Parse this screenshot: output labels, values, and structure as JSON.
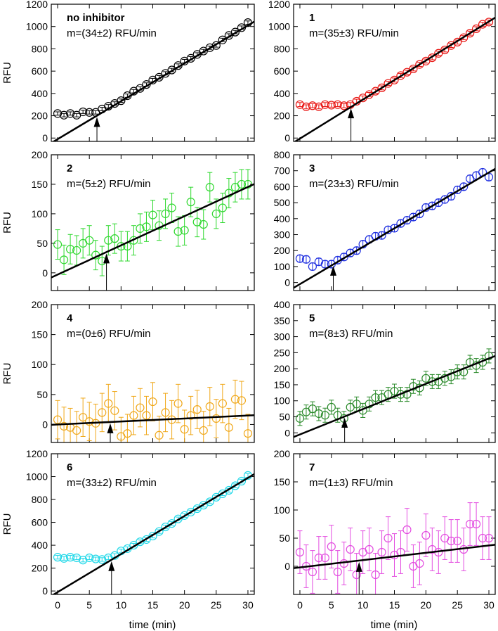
{
  "figure": {
    "xlabel": "time (min)",
    "ylabel": "RFU"
  },
  "chart_data": [
    {
      "type": "scatter",
      "label": "no inhibitor",
      "slope_text": "m=(34±2) RFU/min",
      "color": "#000000",
      "ylim": [
        -30,
        1200
      ],
      "yticks": [
        0,
        200,
        400,
        600,
        800,
        1000,
        1200
      ],
      "xlim": [
        -1,
        31
      ],
      "xticks": [
        0,
        5,
        10,
        15,
        20,
        25,
        30
      ],
      "arrow_x": 6.2,
      "fit": {
        "slope": 34,
        "intercept": -10
      },
      "x": [
        0,
        1,
        2,
        3,
        4,
        5,
        6,
        7,
        8,
        9,
        10,
        11,
        12,
        13,
        14,
        15,
        16,
        17,
        18,
        19,
        20,
        21,
        22,
        23,
        24,
        25,
        26,
        27,
        28,
        29,
        30
      ],
      "y": [
        220,
        205,
        220,
        205,
        235,
        230,
        230,
        260,
        285,
        310,
        335,
        380,
        420,
        445,
        480,
        520,
        545,
        580,
        610,
        650,
        690,
        715,
        750,
        780,
        810,
        830,
        880,
        920,
        950,
        990,
        1035
      ],
      "err": [
        15,
        15,
        15,
        15,
        15,
        15,
        15,
        15,
        15,
        15,
        15,
        15,
        15,
        15,
        15,
        15,
        15,
        15,
        15,
        15,
        15,
        15,
        15,
        15,
        15,
        15,
        15,
        15,
        15,
        15,
        15
      ]
    },
    {
      "type": "scatter",
      "label": "1",
      "slope_text": "m=(35±3) RFU/min",
      "color": "#e8120f",
      "ylim": [
        -30,
        1200
      ],
      "yticks": [
        0,
        200,
        400,
        600,
        800,
        1000,
        1200
      ],
      "xlim": [
        -1,
        31
      ],
      "xticks": [
        0,
        5,
        10,
        15,
        20,
        25,
        30
      ],
      "arrow_x": 8.1,
      "fit": {
        "slope": 35,
        "intercept": -5
      },
      "x": [
        0,
        1,
        2,
        3,
        4,
        5,
        6,
        7,
        8,
        9,
        10,
        11,
        12,
        13,
        14,
        15,
        16,
        17,
        18,
        19,
        20,
        21,
        22,
        23,
        24,
        25,
        26,
        27,
        28,
        29,
        30
      ],
      "y": [
        300,
        280,
        290,
        280,
        300,
        295,
        300,
        290,
        300,
        330,
        360,
        390,
        420,
        450,
        490,
        520,
        560,
        590,
        620,
        660,
        690,
        720,
        760,
        790,
        830,
        860,
        900,
        940,
        980,
        1020,
        1040
      ],
      "err": [
        18,
        18,
        18,
        18,
        18,
        18,
        18,
        18,
        18,
        18,
        18,
        18,
        18,
        18,
        18,
        18,
        18,
        18,
        18,
        18,
        18,
        18,
        18,
        18,
        18,
        18,
        18,
        18,
        18,
        18,
        18
      ]
    },
    {
      "type": "scatter",
      "label": "2",
      "slope_text": "m=(5±2) RFU/min",
      "color": "#2ed82e",
      "ylim": [
        -30,
        200
      ],
      "yticks": [
        0,
        50,
        100,
        150,
        200
      ],
      "xlim": [
        -1,
        31
      ],
      "xticks": [
        0,
        5,
        10,
        15,
        20,
        25,
        30
      ],
      "arrow_x": 7.7,
      "fit": {
        "slope": 4.95,
        "intercept": -3
      },
      "x": [
        0,
        1,
        2,
        3,
        4,
        5,
        6,
        7,
        8,
        9,
        10,
        11,
        12,
        13,
        14,
        15,
        16,
        17,
        18,
        19,
        20,
        21,
        22,
        23,
        24,
        25,
        26,
        27,
        28,
        29,
        30
      ],
      "y": [
        48,
        22,
        40,
        38,
        50,
        55,
        30,
        20,
        55,
        58,
        45,
        45,
        55,
        75,
        78,
        98,
        80,
        100,
        110,
        70,
        72,
        120,
        86,
        82,
        145,
        100,
        110,
        135,
        145,
        150,
        150
      ],
      "err": [
        25,
        25,
        25,
        25,
        25,
        25,
        25,
        25,
        25,
        25,
        25,
        25,
        25,
        25,
        25,
        25,
        25,
        25,
        25,
        25,
        25,
        25,
        25,
        25,
        25,
        25,
        25,
        25,
        25,
        25,
        25
      ]
    },
    {
      "type": "scatter",
      "label": "3",
      "slope_text": "m=(23±3) RFU/min",
      "color": "#1f2fe0",
      "ylim": [
        -50,
        800
      ],
      "yticks": [
        0,
        100,
        200,
        300,
        400,
        500,
        600,
        700,
        800
      ],
      "xlim": [
        -1,
        31
      ],
      "xticks": [
        0,
        5,
        10,
        15,
        20,
        25,
        30
      ],
      "arrow_x": 5.3,
      "fit": {
        "slope": 23.3,
        "intercept": -10
      },
      "x": [
        0,
        1,
        2,
        3,
        4,
        5,
        6,
        7,
        8,
        9,
        10,
        11,
        12,
        13,
        14,
        15,
        16,
        17,
        18,
        19,
        20,
        21,
        22,
        23,
        24,
        25,
        26,
        27,
        28,
        29,
        30
      ],
      "y": [
        150,
        145,
        100,
        130,
        115,
        115,
        140,
        160,
        185,
        200,
        240,
        270,
        290,
        295,
        330,
        340,
        370,
        390,
        410,
        430,
        470,
        480,
        500,
        520,
        540,
        580,
        600,
        650,
        670,
        690,
        660
      ],
      "err": [
        22,
        22,
        22,
        22,
        22,
        22,
        22,
        22,
        22,
        22,
        22,
        22,
        22,
        22,
        22,
        22,
        22,
        22,
        22,
        22,
        22,
        22,
        22,
        22,
        22,
        22,
        22,
        22,
        22,
        22,
        22
      ]
    },
    {
      "type": "scatter",
      "label": "4",
      "slope_text": "m=(0±6) RFU/min",
      "color": "#f0a81a",
      "ylim": [
        -30,
        200
      ],
      "yticks": [
        0,
        50,
        100,
        150,
        200
      ],
      "xlim": [
        -1,
        31
      ],
      "xticks": [
        0,
        5,
        10,
        15,
        20,
        25,
        30
      ],
      "arrow_x": 8.3,
      "fit": {
        "slope": 0.5,
        "intercept": 0
      },
      "x": [
        0,
        1,
        2,
        3,
        4,
        5,
        6,
        7,
        8,
        9,
        10,
        11,
        12,
        13,
        14,
        15,
        16,
        17,
        18,
        19,
        20,
        21,
        22,
        23,
        24,
        25,
        26,
        27,
        28,
        29,
        30
      ],
      "y": [
        8,
        -3,
        -5,
        -10,
        12,
        5,
        2,
        20,
        35,
        23,
        -20,
        -15,
        15,
        28,
        15,
        38,
        -18,
        20,
        8,
        35,
        -8,
        15,
        25,
        -10,
        30,
        10,
        35,
        -5,
        42,
        40,
        -15
      ],
      "err": [
        32,
        32,
        32,
        32,
        32,
        32,
        32,
        32,
        32,
        32,
        32,
        32,
        32,
        32,
        32,
        32,
        32,
        32,
        32,
        32,
        32,
        32,
        32,
        32,
        32,
        32,
        32,
        32,
        32,
        32,
        32
      ]
    },
    {
      "type": "scatter",
      "label": "5",
      "slope_text": "m=(8±3) RFU/min",
      "color": "#2a8a2a",
      "ylim": [
        -30,
        400
      ],
      "yticks": [
        0,
        50,
        100,
        150,
        200,
        250,
        300,
        350,
        400
      ],
      "xlim": [
        -1,
        31
      ],
      "xticks": [
        0,
        5,
        10,
        15,
        20,
        25,
        30
      ],
      "arrow_x": 7.1,
      "fit": {
        "slope": 7.9,
        "intercept": -5
      },
      "x": [
        0,
        1,
        2,
        3,
        4,
        5,
        6,
        7,
        8,
        9,
        10,
        11,
        12,
        13,
        14,
        15,
        16,
        17,
        18,
        19,
        20,
        21,
        22,
        23,
        24,
        25,
        26,
        27,
        28,
        29,
        30
      ],
      "y": [
        45,
        65,
        75,
        60,
        55,
        80,
        55,
        45,
        80,
        90,
        70,
        90,
        110,
        110,
        120,
        130,
        120,
        120,
        145,
        140,
        170,
        160,
        160,
        170,
        175,
        190,
        190,
        220,
        210,
        220,
        240
      ],
      "err": [
        22,
        22,
        22,
        22,
        22,
        22,
        22,
        22,
        22,
        22,
        22,
        22,
        22,
        22,
        22,
        22,
        22,
        22,
        22,
        22,
        22,
        22,
        22,
        22,
        22,
        22,
        22,
        22,
        22,
        22,
        22
      ]
    },
    {
      "type": "scatter",
      "label": "6",
      "slope_text": "m=(33±2) RFU/min",
      "color": "#1fd8e8",
      "ylim": [
        -30,
        1200
      ],
      "yticks": [
        0,
        200,
        400,
        600,
        800,
        1000,
        1200
      ],
      "xlim": [
        -1,
        31
      ],
      "xticks": [
        0,
        5,
        10,
        15,
        20,
        25,
        30
      ],
      "arrow_x": 8.5,
      "fit": {
        "slope": 33.3,
        "intercept": -10
      },
      "x": [
        0,
        1,
        2,
        3,
        4,
        5,
        6,
        7,
        8,
        9,
        10,
        11,
        12,
        13,
        14,
        15,
        16,
        17,
        18,
        19,
        20,
        21,
        22,
        23,
        24,
        25,
        26,
        27,
        28,
        29,
        30
      ],
      "y": [
        295,
        285,
        295,
        290,
        270,
        290,
        280,
        275,
        290,
        310,
        350,
        370,
        400,
        430,
        450,
        480,
        520,
        560,
        590,
        630,
        660,
        690,
        720,
        750,
        780,
        820,
        850,
        880,
        920,
        960,
        1010
      ],
      "err": [
        16,
        16,
        16,
        16,
        16,
        16,
        16,
        16,
        16,
        16,
        16,
        16,
        16,
        16,
        16,
        16,
        16,
        16,
        16,
        16,
        16,
        16,
        16,
        16,
        16,
        16,
        16,
        16,
        16,
        16,
        16
      ]
    },
    {
      "type": "scatter",
      "label": "7",
      "slope_text": "m=(1±3) RFU/min",
      "color": "#e34ce0",
      "ylim": [
        -50,
        200
      ],
      "yticks": [
        0,
        50,
        100,
        150,
        200
      ],
      "xlim": [
        -1,
        31
      ],
      "xticks": [
        0,
        5,
        10,
        15,
        20,
        25,
        30
      ],
      "arrow_x": 9.4,
      "fit": {
        "slope": 1.3,
        "intercept": -2
      },
      "x": [
        0,
        1,
        2,
        3,
        4,
        5,
        6,
        7,
        8,
        9,
        10,
        11,
        12,
        13,
        14,
        15,
        16,
        17,
        18,
        19,
        20,
        21,
        22,
        23,
        24,
        25,
        26,
        27,
        28,
        29,
        30
      ],
      "y": [
        25,
        0,
        -10,
        15,
        15,
        35,
        -10,
        5,
        30,
        -15,
        25,
        30,
        -15,
        25,
        50,
        20,
        25,
        65,
        0,
        5,
        55,
        30,
        25,
        50,
        45,
        45,
        30,
        75,
        75,
        50,
        50
      ],
      "err": [
        38,
        38,
        38,
        38,
        38,
        38,
        38,
        38,
        38,
        38,
        38,
        38,
        38,
        38,
        38,
        38,
        38,
        38,
        38,
        38,
        38,
        38,
        38,
        38,
        38,
        38,
        38,
        38,
        38,
        38,
        38
      ]
    }
  ]
}
